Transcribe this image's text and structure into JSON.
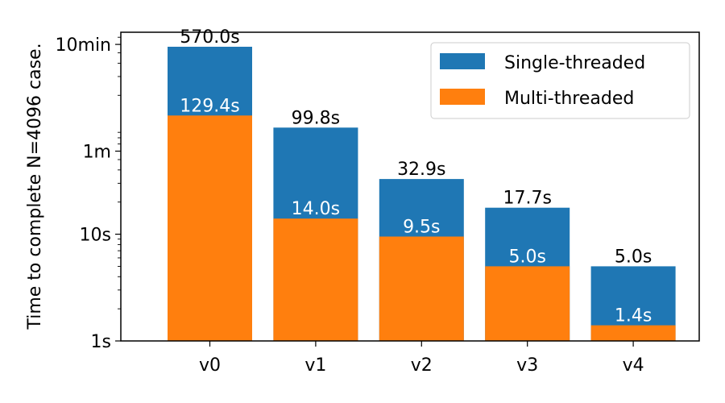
{
  "chart_data": {
    "type": "bar",
    "stacked": "overlaid",
    "categories": [
      "v0",
      "v1",
      "v2",
      "v3",
      "v4"
    ],
    "series": [
      {
        "name": "Single-threaded",
        "color": "#1f77b4",
        "values": [
          570.0,
          99.8,
          32.9,
          17.7,
          5.0
        ],
        "labels": [
          "570.0s",
          "99.8s",
          "32.9s",
          "17.7s",
          "5.0s"
        ]
      },
      {
        "name": "Multi-threaded",
        "color": "#ff7f0e",
        "values": [
          129.4,
          14.0,
          9.5,
          5.0,
          1.4
        ],
        "labels": [
          "129.4s",
          "14.0s",
          "9.5s",
          "5.0s",
          "1.4s"
        ]
      }
    ],
    "ylabel": "Time to complete N=4096 case.",
    "xlabel": "",
    "yscale": "log",
    "ylim": [
      1,
      780
    ],
    "yticks": [
      {
        "value": 1,
        "label": "1s"
      },
      {
        "value": 10,
        "label": "10s"
      },
      {
        "value": 60,
        "label": "1m"
      },
      {
        "value": 600,
        "label": "10min"
      }
    ],
    "legend_position": "top-right",
    "grid": false
  }
}
